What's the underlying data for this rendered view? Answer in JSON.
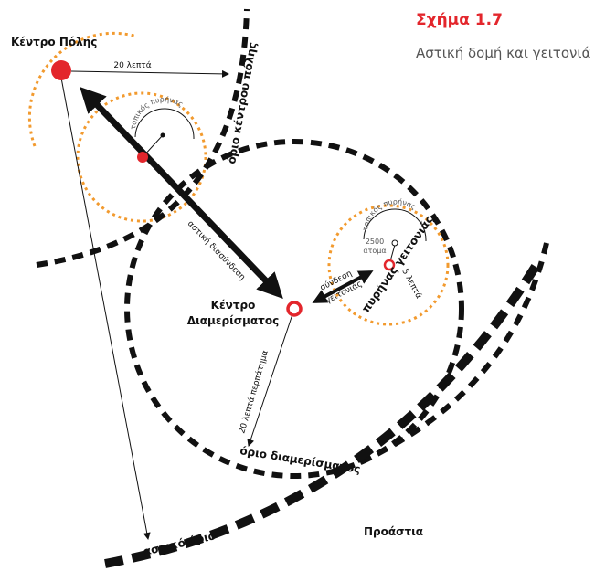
{
  "caption": {
    "figure": "Σχήμα 1.7",
    "title": "Αστική δομή και γειτονιά"
  },
  "labels": {
    "city_center": "Κέντρο Πόλης",
    "city_travel_time": "20 λεπτά",
    "city_center_boundary": "όριο κέντρου πόλης",
    "local_core_1": "τοπικός πυρήνας",
    "urban_link": "αστική διασύνδεση",
    "district_center": [
      "Κέντρο",
      "Διαμερίσματος"
    ],
    "walking_time": "20 λεπτά περπάτημα",
    "district_boundary": "όριο διαμερίσματος",
    "local_core_2": "τοπικός πυρήνας",
    "population": [
      "2500",
      "άτομα"
    ],
    "neighborhood_link": [
      "σύνδεση",
      "γειτονιάς"
    ],
    "neighborhood_walk": "5 λεπτά",
    "neighborhood_core": "πυρήνας γειτονιάς",
    "urban_boundary": "αστικό όριο",
    "suburbs": "Προάστια"
  }
}
